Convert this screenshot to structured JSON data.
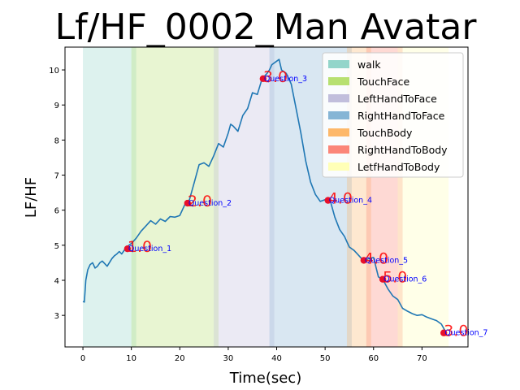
{
  "chart_data": {
    "type": "line",
    "title": "Lf/HF_0002_Man Avatar",
    "xlabel": "Time(sec)",
    "ylabel": "LF/HF",
    "xlim": [
      -3.7,
      79.5
    ],
    "ylim": [
      2.1,
      10.65
    ],
    "xticks": [
      0,
      10,
      20,
      30,
      40,
      50,
      60,
      70
    ],
    "yticks": [
      3,
      4,
      5,
      6,
      7,
      8,
      9,
      10
    ],
    "legend_position": "top-right",
    "series": [
      {
        "color": "#1f77b4",
        "x": [
          0,
          0.3,
          0.6,
          1,
          1.5,
          2,
          2.5,
          3,
          3.5,
          4,
          5,
          6,
          6.5,
          7,
          7.5,
          8,
          9,
          10,
          11,
          12,
          13,
          14,
          15,
          16,
          17,
          18,
          19,
          20,
          21,
          22,
          23,
          24,
          25,
          26,
          27,
          28,
          29,
          30,
          30.5,
          31,
          32,
          33,
          34,
          35,
          36,
          37,
          38,
          38.5,
          39,
          40,
          40.5,
          41,
          42,
          43,
          44,
          45,
          46,
          47,
          48,
          49,
          50,
          51,
          52,
          53,
          54,
          55,
          56,
          57,
          58,
          59,
          60,
          61,
          62,
          63,
          64,
          65,
          66,
          67,
          68,
          69,
          70,
          71,
          72,
          73,
          74,
          75
        ],
        "y": [
          3.4,
          3.38,
          4.0,
          4.3,
          4.45,
          4.5,
          4.35,
          4.4,
          4.5,
          4.55,
          4.4,
          4.62,
          4.7,
          4.75,
          4.82,
          4.75,
          4.95,
          5.05,
          5.2,
          5.4,
          5.55,
          5.7,
          5.6,
          5.75,
          5.68,
          5.82,
          5.8,
          5.85,
          6.15,
          6.3,
          6.8,
          7.3,
          7.35,
          7.25,
          7.55,
          7.9,
          7.8,
          8.2,
          8.45,
          8.4,
          8.25,
          8.7,
          8.9,
          9.35,
          9.3,
          9.75,
          9.9,
          10.0,
          10.15,
          10.25,
          10.3,
          10.0,
          9.9,
          9.6,
          8.9,
          8.2,
          7.4,
          6.8,
          6.45,
          6.25,
          6.3,
          6.3,
          5.8,
          5.45,
          5.25,
          4.95,
          4.85,
          4.7,
          4.55,
          4.62,
          4.65,
          4.1,
          4.0,
          3.75,
          3.55,
          3.45,
          3.2,
          3.12,
          3.05,
          3.0,
          3.02,
          2.95,
          2.9,
          2.85,
          2.75,
          2.5
        ]
      }
    ],
    "regions": [
      {
        "name": "walk",
        "color": "#8dd3c7",
        "start": 0,
        "end": 11
      },
      {
        "name": "TouchFace",
        "color": "#b3de69",
        "start": 10,
        "end": 28
      },
      {
        "name": "LeftHandToFace",
        "color": "#bebada",
        "start": 27,
        "end": 39.5
      },
      {
        "name": "RightHandToFace",
        "color": "#80b1d3",
        "start": 38.5,
        "end": 55.5
      },
      {
        "name": "TouchBody",
        "color": "#fdb462",
        "start": 54.5,
        "end": 59.5
      },
      {
        "name": "RightHandToBody",
        "color": "#fb8072",
        "start": 58.5,
        "end": 66
      },
      {
        "name": "LetfHandToBody",
        "color": "#ffffb3",
        "start": 65,
        "end": 75.5
      }
    ],
    "questions": [
      {
        "label": "Question_1",
        "score": "1.0",
        "x": 9.2,
        "y": 4.9
      },
      {
        "label": "Question_2",
        "score": "2.0",
        "x": 21.6,
        "y": 6.2
      },
      {
        "label": "Question_3",
        "score": "3.0",
        "x": 37.2,
        "y": 9.75
      },
      {
        "label": "Question_4",
        "score": "4.0",
        "x": 50.6,
        "y": 6.28
      },
      {
        "label": "Question_5",
        "score": "4.0",
        "x": 58.0,
        "y": 4.57
      },
      {
        "label": "Question_6",
        "score": "5.0",
        "x": 61.9,
        "y": 4.03
      },
      {
        "label": "Question_7",
        "score": "3.0",
        "x": 74.5,
        "y": 2.5
      }
    ],
    "colors": {
      "line": "#1f77b4",
      "marker": "#e8102a",
      "question_text": "#0000ff",
      "score_text": "#ff0000"
    }
  }
}
